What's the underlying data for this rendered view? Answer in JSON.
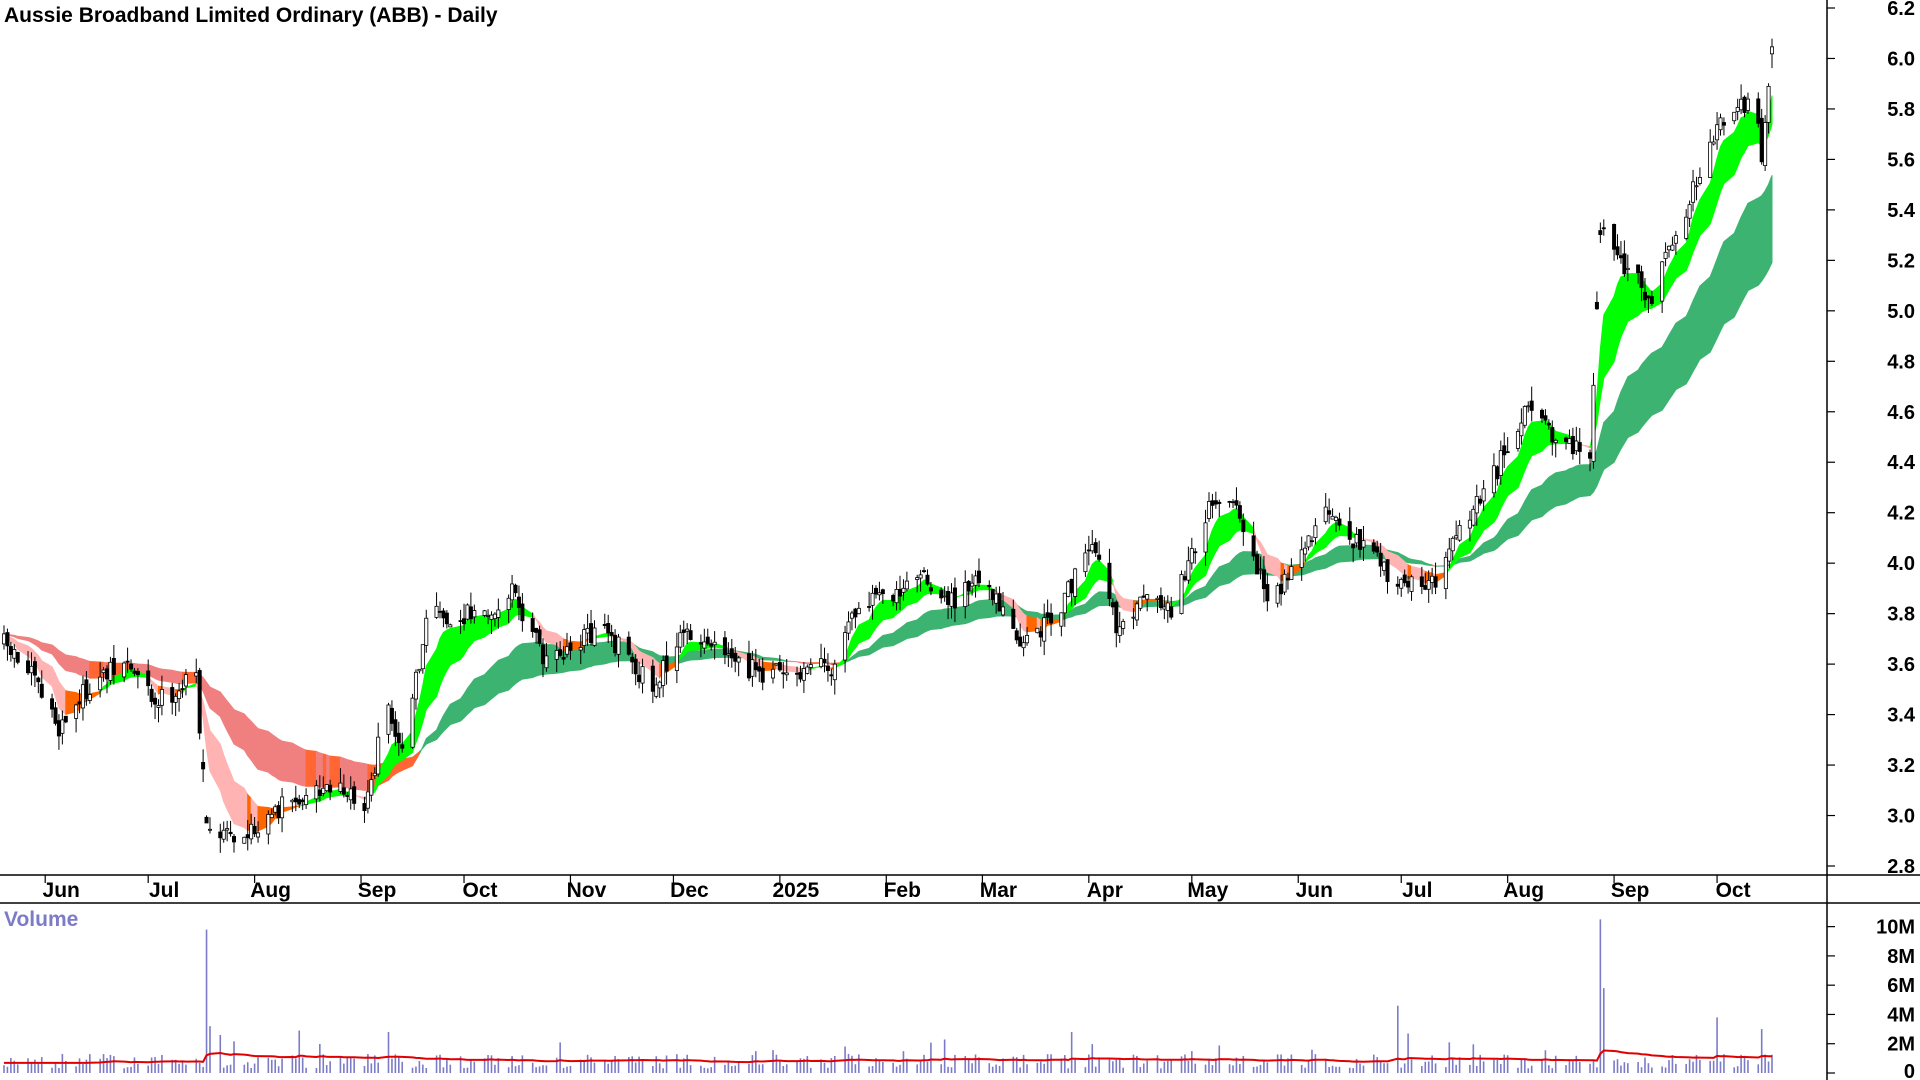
{
  "chart_data": [
    {
      "type": "candlestick",
      "title": "Aussie Broadband Limited Ordinary (ABB) - Daily",
      "ylim": [
        2.7,
        6.3
      ],
      "y_ticks": [
        "6.2",
        "6.0",
        "5.8",
        "5.6",
        "5.4",
        "5.2",
        "5.0",
        "4.8",
        "4.6",
        "4.4",
        "4.2",
        "4.0",
        "3.8",
        "3.6",
        "3.4",
        "3.2",
        "3.0",
        "2.8"
      ],
      "x_labels": [
        "Jun",
        "Jul",
        "Aug",
        "Sep",
        "Oct",
        "Nov",
        "Dec",
        "2025",
        "Feb",
        "Mar",
        "Apr",
        "May",
        "Jun",
        "Jul",
        "Aug",
        "Sep",
        "Oct"
      ],
      "x_months": [
        "2024-06",
        "2024-07",
        "2024-08",
        "2024-09",
        "2024-10",
        "2024-11",
        "2024-12",
        "2025-01",
        "2025-02",
        "2025-03",
        "2025-04",
        "2025-05",
        "2025-06",
        "2025-07",
        "2025-08",
        "2025-09",
        "2025-10"
      ],
      "period": {
        "start": "2024-05-20",
        "end": "2025-10-17"
      },
      "series": [
        {
          "role": "price",
          "colors": {
            "up": "#ffffff",
            "down": "#000000",
            "outline": "#000000"
          },
          "keypoints": [
            [
              "2024-05-20",
              3.68
            ],
            [
              "2024-05-28",
              3.55
            ],
            [
              "2024-06-05",
              3.35
            ],
            [
              "2024-06-14",
              3.52
            ],
            [
              "2024-06-25",
              3.6
            ],
            [
              "2024-07-03",
              3.45
            ],
            [
              "2024-07-15",
              3.55
            ],
            [
              "2024-07-18",
              3.0
            ],
            [
              "2024-07-25",
              2.9
            ],
            [
              "2024-08-10",
              3.05
            ],
            [
              "2024-08-25",
              3.1
            ],
            [
              "2024-09-03",
              3.05
            ],
            [
              "2024-09-08",
              3.45
            ],
            [
              "2024-09-14",
              3.25
            ],
            [
              "2024-09-20",
              3.8
            ],
            [
              "2024-10-05",
              3.8
            ],
            [
              "2024-10-15",
              3.88
            ],
            [
              "2024-10-25",
              3.62
            ],
            [
              "2024-11-10",
              3.75
            ],
            [
              "2024-11-25",
              3.5
            ],
            [
              "2024-12-05",
              3.75
            ],
            [
              "2024-12-20",
              3.58
            ],
            [
              "2025-01-08",
              3.55
            ],
            [
              "2025-01-17",
              3.6
            ],
            [
              "2025-01-22",
              3.8
            ],
            [
              "2025-02-10",
              3.95
            ],
            [
              "2025-02-20",
              3.85
            ],
            [
              "2025-03-02",
              3.95
            ],
            [
              "2025-03-12",
              3.65
            ],
            [
              "2025-03-25",
              3.85
            ],
            [
              "2025-04-02",
              4.1
            ],
            [
              "2025-04-10",
              3.72
            ],
            [
              "2025-04-20",
              3.9
            ],
            [
              "2025-04-25",
              3.8
            ],
            [
              "2025-05-05",
              4.2
            ],
            [
              "2025-05-14",
              4.2
            ],
            [
              "2025-05-24",
              3.85
            ],
            [
              "2025-06-08",
              4.2
            ],
            [
              "2025-06-20",
              4.05
            ],
            [
              "2025-06-28",
              3.95
            ],
            [
              "2025-07-08",
              3.88
            ],
            [
              "2025-07-20",
              4.15
            ],
            [
              "2025-07-28",
              4.35
            ],
            [
              "2025-08-08",
              4.65
            ],
            [
              "2025-08-15",
              4.5
            ],
            [
              "2025-08-25",
              4.45
            ],
            [
              "2025-08-28",
              5.3
            ],
            [
              "2025-09-12",
              5.05
            ],
            [
              "2025-09-22",
              5.4
            ],
            [
              "2025-10-02",
              5.75
            ],
            [
              "2025-10-12",
              5.85
            ],
            [
              "2025-10-14",
              5.6
            ],
            [
              "2025-10-17",
              6.02
            ]
          ]
        },
        {
          "role": "short-term MMA band",
          "colors": {
            "rising": "#00ff00",
            "falling": "#ff6600",
            "falling_light": "#ffb3b3"
          }
        },
        {
          "role": "long-term MMA band",
          "colors": {
            "rising": "#3cb371",
            "falling": "#ff6633",
            "falling_light": "#f08080"
          }
        }
      ]
    },
    {
      "type": "bar",
      "title": "Volume",
      "ylim": [
        0,
        11000000
      ],
      "y_ticks": [
        "10M",
        "8M",
        "6M",
        "4M",
        "2M",
        "0"
      ],
      "colors": {
        "bars": "#7b7bc8",
        "average": "#e00000"
      },
      "typical_volume": 900000,
      "average_volume": 1150000,
      "spikes": [
        [
          "2024-07-18",
          9800000
        ],
        [
          "2024-07-19",
          3200000
        ],
        [
          "2024-07-22",
          2600000
        ],
        [
          "2024-08-14",
          2900000
        ],
        [
          "2024-09-09",
          2800000
        ],
        [
          "2025-03-27",
          2800000
        ],
        [
          "2025-06-30",
          4600000
        ],
        [
          "2025-07-03",
          2700000
        ],
        [
          "2025-08-28",
          10500000
        ],
        [
          "2025-08-29",
          5800000
        ],
        [
          "2025-10-01",
          3800000
        ],
        [
          "2025-10-14",
          3000000
        ]
      ]
    }
  ]
}
